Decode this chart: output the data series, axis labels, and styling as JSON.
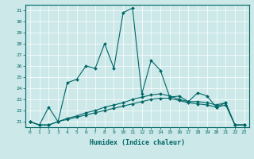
{
  "title": "",
  "xlabel": "Humidex (Indice chaleur)",
  "bg_color": "#cce8e8",
  "line_color": "#006666",
  "xlim": [
    -0.5,
    23.5
  ],
  "ylim": [
    20.5,
    31.5
  ],
  "yticks": [
    21,
    22,
    23,
    24,
    25,
    26,
    27,
    28,
    29,
    30,
    31
  ],
  "xticks": [
    0,
    1,
    2,
    3,
    4,
    5,
    6,
    7,
    8,
    9,
    10,
    11,
    12,
    13,
    14,
    15,
    16,
    17,
    18,
    19,
    20,
    21,
    22,
    23
  ],
  "series1_x": [
    0,
    1,
    2,
    3,
    4,
    5,
    6,
    7,
    8,
    9,
    10,
    11,
    12,
    13,
    14,
    15,
    16,
    17,
    18,
    19,
    20,
    21,
    22,
    23
  ],
  "series1_y": [
    21.0,
    20.7,
    22.3,
    21.0,
    24.5,
    24.8,
    26.0,
    25.8,
    28.0,
    25.8,
    30.8,
    31.2,
    23.5,
    26.5,
    25.6,
    23.2,
    23.3,
    22.8,
    23.6,
    23.3,
    22.3,
    22.7,
    20.7,
    20.7
  ],
  "series2_x": [
    0,
    1,
    2,
    3,
    4,
    5,
    6,
    7,
    8,
    9,
    10,
    11,
    12,
    13,
    14,
    15,
    16,
    17,
    18,
    19,
    20,
    21,
    22,
    23
  ],
  "series2_y": [
    21.0,
    20.7,
    20.7,
    21.0,
    21.3,
    21.5,
    21.8,
    22.0,
    22.3,
    22.5,
    22.7,
    23.0,
    23.2,
    23.4,
    23.5,
    23.3,
    23.0,
    22.8,
    22.8,
    22.7,
    22.5,
    22.7,
    20.7,
    20.7
  ],
  "series3_x": [
    0,
    1,
    2,
    3,
    4,
    5,
    6,
    7,
    8,
    9,
    10,
    11,
    12,
    13,
    14,
    15,
    16,
    17,
    18,
    19,
    20,
    21,
    22,
    23
  ],
  "series3_y": [
    21.0,
    20.7,
    20.7,
    21.0,
    21.2,
    21.4,
    21.6,
    21.8,
    22.0,
    22.2,
    22.4,
    22.6,
    22.8,
    23.0,
    23.1,
    23.1,
    22.9,
    22.7,
    22.6,
    22.5,
    22.3,
    22.5,
    20.7,
    20.7
  ]
}
